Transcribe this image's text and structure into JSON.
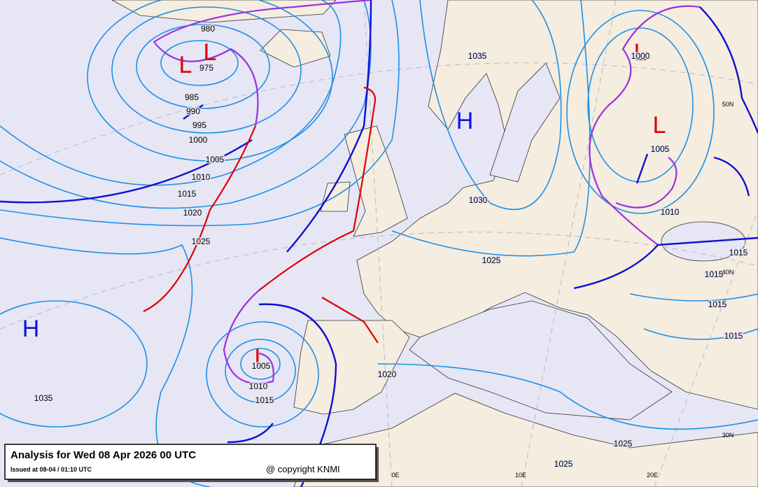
{
  "title": "Analysis for Wed 08 Apr 2026 00 UTC",
  "issued": "Issued at 08-04 / 01:10 UTC",
  "copyright": "@ copyright KNMI",
  "pressure_centers": [
    "L",
    "L",
    "L",
    "L",
    "L",
    "H",
    "H"
  ],
  "isobar_labels": [
    980,
    975,
    985,
    990,
    995,
    1000,
    1005,
    1010,
    1015,
    1020,
    1025,
    1035,
    1035,
    1030,
    1025,
    1020,
    1005,
    1010,
    1015,
    1025,
    1025,
    1000,
    1005,
    1010,
    1015,
    1015,
    1015,
    1015
  ],
  "graticule_labels": [
    "50N",
    "40N",
    "30N",
    "0E",
    "10E",
    "20E"
  ]
}
